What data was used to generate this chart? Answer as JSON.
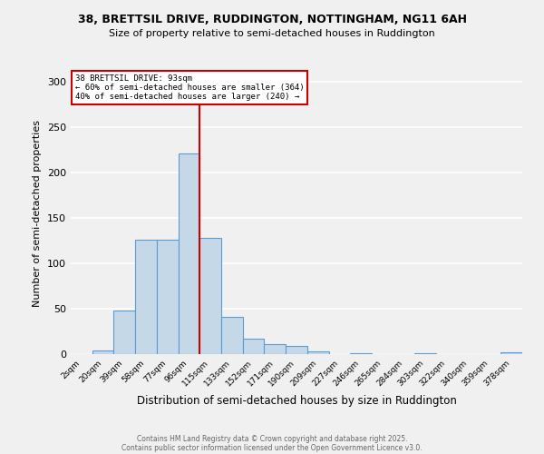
{
  "title_line1": "38, BRETTSIL DRIVE, RUDDINGTON, NOTTINGHAM, NG11 6AH",
  "title_line2": "Size of property relative to semi-detached houses in Ruddington",
  "xlabel": "Distribution of semi-detached houses by size in Ruddington",
  "ylabel": "Number of semi-detached properties",
  "footnote1": "Contains HM Land Registry data © Crown copyright and database right 2025.",
  "footnote2": "Contains public sector information licensed under the Open Government Licence v3.0.",
  "categories": [
    "2sqm",
    "20sqm",
    "39sqm",
    "58sqm",
    "77sqm",
    "96sqm",
    "115sqm",
    "133sqm",
    "152sqm",
    "171sqm",
    "190sqm",
    "209sqm",
    "227sqm",
    "246sqm",
    "265sqm",
    "284sqm",
    "303sqm",
    "322sqm",
    "340sqm",
    "359sqm",
    "378sqm"
  ],
  "values": [
    0,
    4,
    48,
    126,
    126,
    221,
    128,
    41,
    17,
    11,
    9,
    3,
    0,
    1,
    0,
    0,
    1,
    0,
    0,
    0,
    2
  ],
  "bar_color": "#c5d8e8",
  "bar_edge_color": "#5b9bd5",
  "vline_x": 5.5,
  "vline_color": "#cc0000",
  "annotation_title": "38 BRETTSIL DRIVE: 93sqm",
  "annotation_line2": "← 60% of semi-detached houses are smaller (364)",
  "annotation_line3": "40% of semi-detached houses are larger (240) →",
  "annotation_box_color": "#cc0000",
  "ylim": [
    0,
    310
  ],
  "yticks": [
    0,
    50,
    100,
    150,
    200,
    250,
    300
  ],
  "background_color": "#f0f0f0",
  "plot_background": "#f0f0f0",
  "grid_color": "#ffffff"
}
